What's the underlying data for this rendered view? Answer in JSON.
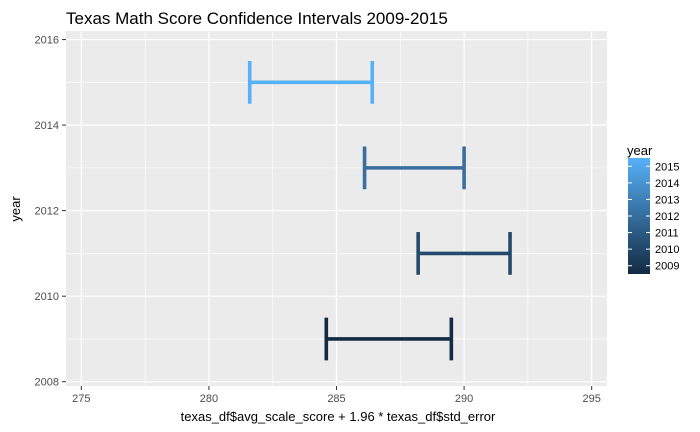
{
  "chart_data": {
    "type": "errorbar",
    "title": "Texas Math Score Confidence Intervals 2009-2015",
    "xlabel": "texas_df$avg_scale_score + 1.96 * texas_df$std_error",
    "ylabel": "year",
    "xlim": [
      274.4,
      295.6
    ],
    "ylim": [
      2007.9,
      2016.2
    ],
    "x_ticks": [
      275,
      280,
      285,
      290,
      295
    ],
    "x_tick_labels": [
      "275",
      "280",
      "285",
      "290",
      "295"
    ],
    "y_ticks": [
      2008,
      2010,
      2012,
      2014,
      2016
    ],
    "y_tick_labels": [
      "2008",
      "2010",
      "2012",
      "2014",
      "2016"
    ],
    "grid": true,
    "intervals": [
      {
        "year": 2009,
        "xmin": 284.6,
        "xmax": 289.5,
        "ymin": 2008.5,
        "ymax": 2009.5,
        "color": "#132b43"
      },
      {
        "year": 2011,
        "xmin": 288.2,
        "xmax": 291.8,
        "ymin": 2010.5,
        "ymax": 2011.5,
        "color": "#264a6e"
      },
      {
        "year": 2013,
        "xmin": 286.1,
        "xmax": 290.0,
        "ymin": 2012.5,
        "ymax": 2013.5,
        "color": "#3b6e9e"
      },
      {
        "year": 2015,
        "xmin": 281.6,
        "xmax": 286.4,
        "ymin": 2014.5,
        "ymax": 2015.5,
        "color": "#56b1f7"
      }
    ],
    "legend": {
      "title": "year",
      "placement": "right",
      "labels": [
        "2015",
        "2014",
        "2013",
        "2012",
        "2011",
        "2010",
        "2009"
      ],
      "color_low": "#132b43",
      "color_high": "#56b1f7"
    }
  }
}
